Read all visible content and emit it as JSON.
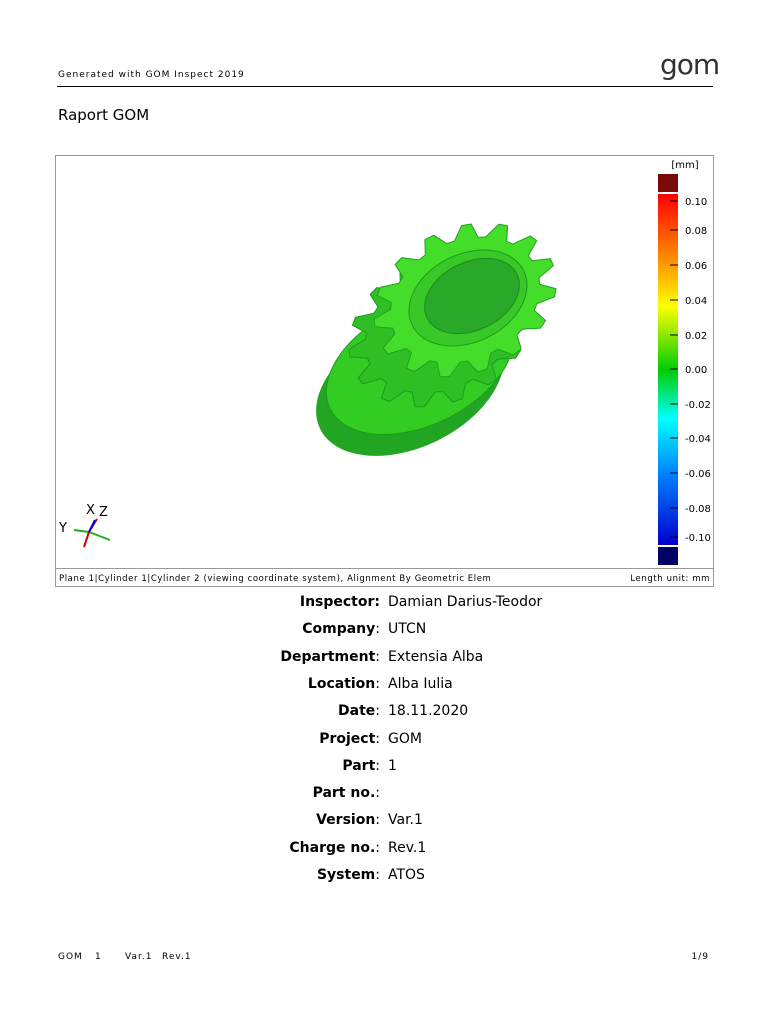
{
  "header": {
    "generated": "Generated with GOM Inspect 2019",
    "logo": "gom"
  },
  "title": "Raport GOM",
  "figure": {
    "unit_label": "[mm]",
    "scale_labels": [
      "0.10",
      "0.08",
      "0.06",
      "0.04",
      "0.02",
      "0.00",
      "-0.02",
      "-0.04",
      "-0.06",
      "-0.08",
      "-0.10"
    ],
    "axes": {
      "x": "X",
      "z": "Z",
      "y": "Y"
    },
    "caption": "Plane 1|Cylinder 1|Cylinder 2 (viewing coordinate system), Alignment By Geometric Elem",
    "length_unit": "Length unit: mm"
  },
  "info": [
    {
      "label": "Inspector:",
      "value": "Damian Darius-Teodor"
    },
    {
      "label": "Company",
      "sep": ":",
      "value": "UTCN"
    },
    {
      "label": "Department",
      "sep": ":",
      "value": "Extensia Alba"
    },
    {
      "label": "Location",
      "sep": ":",
      "value": "Alba Iulia"
    },
    {
      "label": "Date",
      "sep": ":",
      "value": "18.11.2020"
    },
    {
      "label": "Project",
      "sep": ":",
      "value": "GOM"
    },
    {
      "label": "Part",
      "sep": ":",
      "value": "1"
    },
    {
      "label": "Part no.",
      "sep": ":"
    },
    {
      "label": "Version",
      "sep": ":",
      "value": "Var.1"
    },
    {
      "label": "Charge no.",
      "sep": ":",
      "value": "Rev.1"
    },
    {
      "label": "System",
      "sep": ":",
      "value": "ATOS"
    }
  ],
  "footer": {
    "items": [
      "GOM",
      "1",
      "Var.1",
      "Rev.1"
    ],
    "page": "1/9"
  }
}
